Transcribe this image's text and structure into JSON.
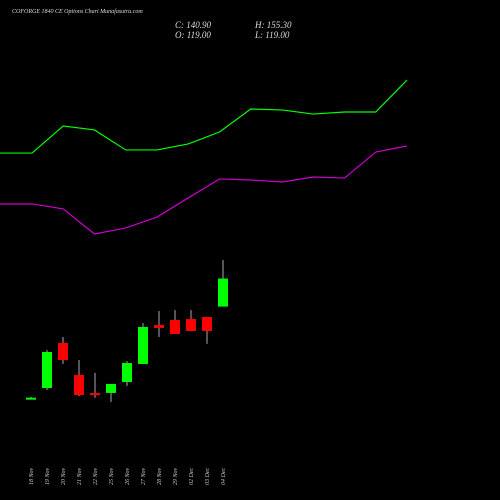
{
  "chart_data": {
    "type": "candlestick",
    "title": "COFORGE 1840  CE Options Chart Munafasutra.com",
    "summary": {
      "close": "C: 140.90",
      "high": "H: 155.30",
      "open": "O: 119.00",
      "low": "L: 119.00"
    },
    "categories": [
      "18 Nov",
      "19 Nov",
      "20 Nov",
      "21 Nov",
      "22 Nov",
      "25 Nov",
      "26 Nov",
      "27 Nov",
      "28 Nov",
      "29 Nov",
      "02 Dec",
      "03 Dec",
      "04 Dec"
    ],
    "open": [
      47.5,
      55.5,
      90.6,
      65.7,
      51.5,
      51.7,
      60.2,
      74.3,
      104.7,
      108.6,
      109.3,
      110.9,
      119
    ],
    "high": [
      48.5,
      85.2,
      95.3,
      77.4,
      67.2,
      58.7,
      76.6,
      106.2,
      115.6,
      116.3,
      116.3,
      110.9,
      155.3
    ],
    "low": [
      47,
      54,
      74.3,
      49.3,
      47.8,
      44.6,
      57.1,
      74.3,
      95.3,
      97.6,
      100,
      89.9,
      119
    ],
    "close": [
      48,
      83.6,
      77.4,
      50.1,
      50.9,
      58.7,
      75,
      103.1,
      102.3,
      97.6,
      100,
      100,
      140.9
    ],
    "up_color": "#00ff00",
    "down_color": "#ff0000",
    "series": [
      {
        "color": "#00ff00",
        "values": [
          238.7,
          259.8,
          256.7,
          241.1,
          241.1,
          245.8,
          255.1,
          273.0,
          272.3,
          269.1,
          270.7,
          270.7,
          295.6
        ]
      },
      {
        "color": "#cc00cc",
        "values": [
          199.0,
          195.1,
          175.6,
          180.3,
          188.8,
          203.7,
          218.5,
          217.7,
          216.1,
          220.0,
          219.2,
          239.5,
          244.2
        ]
      }
    ],
    "ylim": [
      15,
      358
    ]
  }
}
